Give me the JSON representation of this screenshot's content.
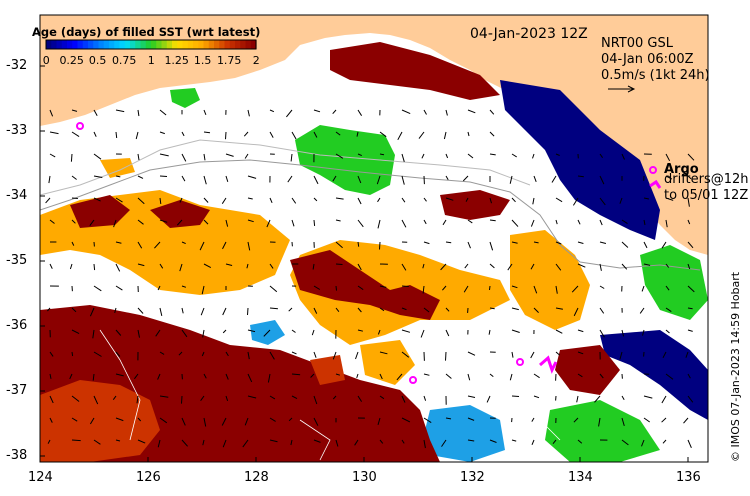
{
  "title_date": "04-Jan-2023 12Z",
  "colorbar": {
    "title": "Age (days) of filled SST (wrt latest)",
    "ticks": [
      "0",
      "0.25",
      "0.5",
      "0.75",
      "1",
      "1.25",
      "1.5",
      "1.75",
      "2"
    ],
    "colors": [
      "#00007f",
      "#0000ff",
      "#0080ff",
      "#00ddff",
      "#22cc22",
      "#ffdd00",
      "#ffaa00",
      "#cc3300",
      "#8b0000"
    ]
  },
  "velocity": {
    "source": "NRT00 GSL",
    "time": "04-Jan 06:00Z",
    "scale": "0.5m/s (1kt 24h)"
  },
  "legend": {
    "argo": "Argo",
    "drifters": "drifters@12h",
    "drifters_to": "to 05/01 12Z"
  },
  "axes": {
    "y_ticks": [
      "-32",
      "-33",
      "-34",
      "-35",
      "-36",
      "-37",
      "-38"
    ],
    "x_ticks": [
      "124",
      "126",
      "128",
      "130",
      "132",
      "134",
      "136"
    ]
  },
  "credit": "© IMOS 07-Jan-2023 14:59 Hobart",
  "colors": {
    "land": "#ffcc99",
    "no_data": "#ffffff",
    "argo_marker": "#ff00ff"
  }
}
